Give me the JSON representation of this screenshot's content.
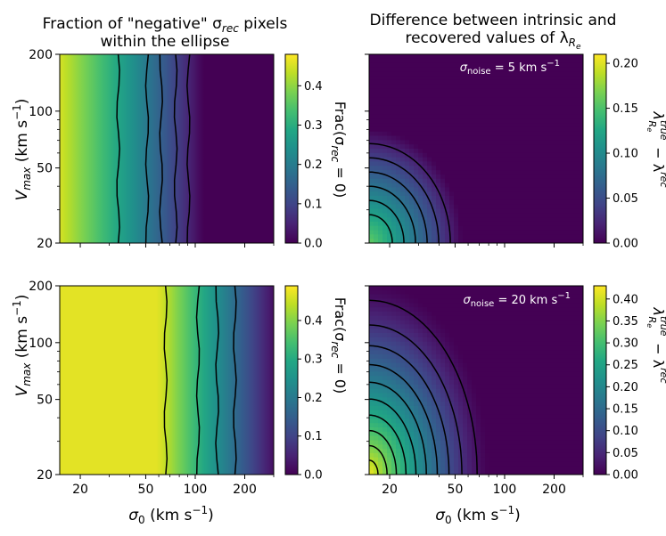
{
  "figure": {
    "titles": {
      "left_line1": "Fraction of \"negative\" σ",
      "left_sub": "rec",
      "left_line1_tail": " pixels",
      "left_line2": "within the ellipse",
      "right_line1": "Difference between intrinsic and",
      "right_line2": "recovered values of λ",
      "right_sub": "R",
      "right_subsub": "e"
    },
    "ylabel": {
      "main": "V",
      "sub": "max",
      "tail": " (km s",
      "sup": "−1",
      "close": ")"
    },
    "xlabel": {
      "main": "σ",
      "sub": "0",
      "tail": " (km s",
      "sup": "−1",
      "close": ")"
    },
    "cbar_left_label": {
      "pre": "Frac(σ",
      "sub": "rec",
      "post": " = 0)"
    },
    "cbar_right_label": {
      "pre": "λ",
      "sup": "true",
      "sub": "R",
      "subsub": "e",
      "minus": " − λ",
      "sup2": "rec"
    },
    "ann_top": {
      "pre": "σ",
      "sub": "noise",
      "post": " = 5 km s",
      "sup": "−1"
    },
    "ann_bottom": {
      "pre": "σ",
      "sub": "noise",
      "post": " = 20 km s",
      "sup": "−1"
    }
  },
  "chart_data": [
    {
      "type": "heatmap",
      "name": "top-left",
      "title": "Fraction of \"negative\" σrec pixels within the ellipse",
      "xlabel": "σ0 (km s−1)",
      "ylabel": "Vmax (km s−1)",
      "xscale": "log",
      "yscale": "log",
      "xlim": [
        15,
        300
      ],
      "ylim": [
        20,
        200
      ],
      "xticks": [
        "20",
        "50",
        "100",
        "200"
      ],
      "yticks": [
        "20",
        "50",
        "100",
        "200"
      ],
      "colorbar": {
        "label": "Frac(σrec = 0)",
        "range": [
          0,
          0.48
        ],
        "ticks": [
          "0.0",
          "0.1",
          "0.2",
          "0.3",
          "0.4"
        ]
      },
      "contour_sigma0": [
        34,
        51,
        62,
        76,
        91
      ],
      "colormap": "viridis",
      "value_model": "decreasing with σ0; ~0.45 at σ0=15, ~0 beyond σ0≈110"
    },
    {
      "type": "heatmap",
      "name": "top-right",
      "title": "Difference between intrinsic and recovered values of λRe",
      "annotation": "σnoise = 5 km s−1",
      "xscale": "log",
      "yscale": "log",
      "xlim": [
        15,
        300
      ],
      "ylim": [
        20,
        200
      ],
      "colorbar": {
        "label": "λRe true − λRe rec",
        "range": [
          0,
          0.21
        ],
        "ticks": [
          "0.00",
          "0.05",
          "0.10",
          "0.15",
          "0.20"
        ]
      },
      "max_value": 0.16,
      "contour_levels": [
        0.02,
        0.04,
        0.06,
        0.08,
        0.1,
        0.12
      ],
      "colormap": "viridis"
    },
    {
      "type": "heatmap",
      "name": "bottom-left",
      "xlabel": "σ0 (km s−1)",
      "ylabel": "Vmax (km s−1)",
      "xscale": "log",
      "yscale": "log",
      "xlim": [
        15,
        300
      ],
      "ylim": [
        20,
        200
      ],
      "colorbar": {
        "label": "Frac(σrec = 0)",
        "range": [
          0,
          0.49
        ],
        "ticks": [
          "0.0",
          "0.1",
          "0.2",
          "0.3",
          "0.4"
        ]
      },
      "contour_sigma0": [
        66,
        104,
        136,
        174
      ],
      "colormap": "viridis",
      "value_model": "≈0.47 for σ0<60 then decreasing to ~0.02 at σ0=300"
    },
    {
      "type": "heatmap",
      "name": "bottom-right",
      "annotation": "σnoise = 20 km s−1",
      "xlabel": "σ0 (km s−1)",
      "xscale": "log",
      "yscale": "log",
      "xlim": [
        15,
        300
      ],
      "ylim": [
        20,
        200
      ],
      "colorbar": {
        "label": "λRe true − λRe rec",
        "range": [
          0,
          0.43
        ],
        "ticks": [
          "0.00",
          "0.05",
          "0.10",
          "0.15",
          "0.20",
          "0.25",
          "0.30",
          "0.35",
          "0.40"
        ]
      },
      "max_value": 0.42,
      "contour_levels": [
        0.02,
        0.06,
        0.1,
        0.14,
        0.18,
        0.22,
        0.26,
        0.3,
        0.34,
        0.38
      ],
      "colormap": "viridis"
    }
  ]
}
